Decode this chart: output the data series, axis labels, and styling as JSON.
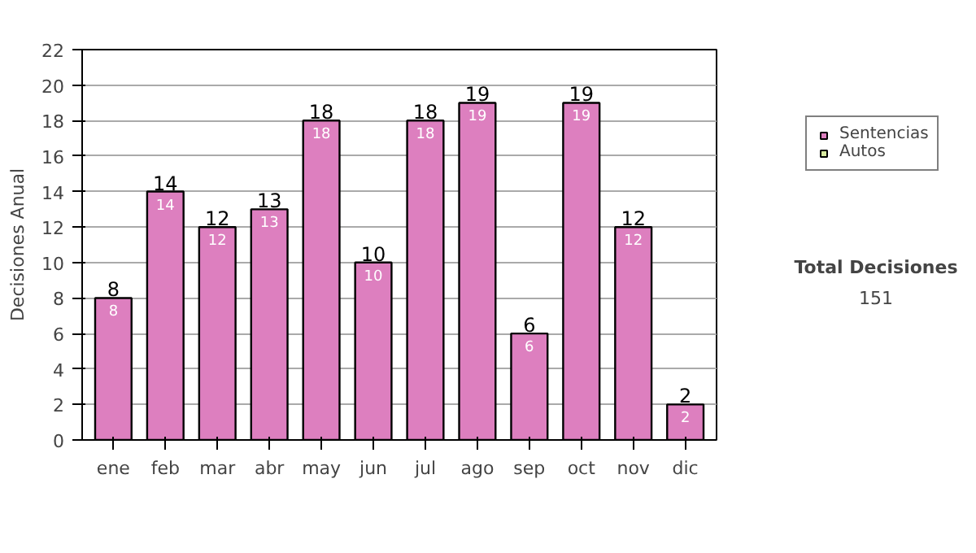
{
  "chart_data": {
    "type": "bar",
    "stacked": true,
    "ylabel": "Decisiones Anual",
    "categories": [
      "ene",
      "feb",
      "mar",
      "abr",
      "may",
      "jun",
      "jul",
      "ago",
      "sep",
      "oct",
      "nov",
      "dic"
    ],
    "series": [
      {
        "name": "Sentencias",
        "color": "#dd7fbf",
        "values": [
          8,
          14,
          12,
          13,
          18,
          10,
          18,
          19,
          6,
          19,
          12,
          2
        ]
      },
      {
        "name": "Autos",
        "color": "#d8eaa0",
        "values": [
          null,
          null,
          null,
          null,
          null,
          null,
          null,
          null,
          null,
          null,
          null,
          null
        ]
      }
    ],
    "totals": [
      "8",
      "14",
      "12",
      "13",
      "18",
      "10",
      "18",
      "19",
      "6",
      "19",
      "12",
      "2"
    ],
    "data_labels": true,
    "ylim": [
      0,
      22
    ],
    "yticks": [
      0,
      2,
      4,
      6,
      8,
      10,
      12,
      14,
      16,
      18,
      20,
      22
    ],
    "grid": "y",
    "legend": "right",
    "annotations": [
      "Total Decisiones",
      "151"
    ]
  }
}
